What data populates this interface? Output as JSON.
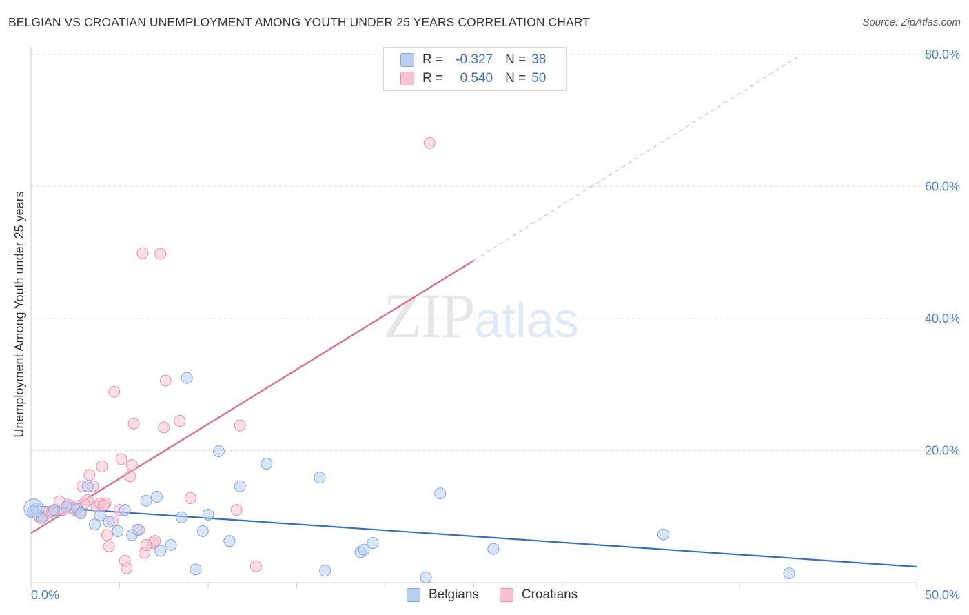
{
  "title": "BELGIAN VS CROATIAN UNEMPLOYMENT AMONG YOUTH UNDER 25 YEARS CORRELATION CHART",
  "source": "Source: ZipAtlas.com",
  "watermark": {
    "zip": "ZIP",
    "atlas": "atlas"
  },
  "legend": {
    "belgians": {
      "r_label": "R =",
      "r_value": "-0.327",
      "n_label": "N =",
      "n_value": "38"
    },
    "croatians": {
      "r_label": "R =",
      "r_value": "0.540",
      "n_label": "N =",
      "n_value": "50"
    }
  },
  "bottom_legend": {
    "belgians": "Belgians",
    "croatians": "Croatians"
  },
  "colors": {
    "belgian_fill": "#b8d0f3",
    "belgian_stroke": "#7fa6df",
    "belgian_line": "#2f6fcb",
    "croatian_fill": "#f7c2d2",
    "croatian_stroke": "#e88fab",
    "croatian_line": "#e0628e",
    "grid": "#dddddd",
    "tick_text": "#4a7fd0"
  },
  "chart_data": {
    "type": "scatter",
    "title": "BELGIAN VS CROATIAN UNEMPLOYMENT AMONG YOUTH UNDER 25 YEARS CORRELATION CHART",
    "xlabel": "",
    "ylabel": "Unemployment Among Youth under 25 years",
    "xlim": [
      0,
      50
    ],
    "ylim": [
      0,
      80
    ],
    "x_tick_labels": [
      "0.0%",
      "50.0%"
    ],
    "y_tick_labels": [
      "20.0%",
      "40.0%",
      "60.0%",
      "80.0%"
    ],
    "y_ticks": [
      20,
      40,
      60,
      80
    ],
    "grid": true,
    "legend_position": "top-center",
    "series": [
      {
        "name": "Belgians",
        "points": [
          [
            0.1,
            10.8
          ],
          [
            0.6,
            9.8
          ],
          [
            1.3,
            11.0
          ],
          [
            2.0,
            11.5
          ],
          [
            2.6,
            11.2
          ],
          [
            2.8,
            10.5
          ],
          [
            3.2,
            14.6
          ],
          [
            3.6,
            8.8
          ],
          [
            3.9,
            10.2
          ],
          [
            4.4,
            9.2
          ],
          [
            4.9,
            7.8
          ],
          [
            5.3,
            11.0
          ],
          [
            5.7,
            7.2
          ],
          [
            6.0,
            8.0
          ],
          [
            6.5,
            12.4
          ],
          [
            7.1,
            13.0
          ],
          [
            7.3,
            4.8
          ],
          [
            7.9,
            5.7
          ],
          [
            8.5,
            9.9
          ],
          [
            8.8,
            31.0
          ],
          [
            9.3,
            2.0
          ],
          [
            9.7,
            7.8
          ],
          [
            10.0,
            10.3
          ],
          [
            10.6,
            19.9
          ],
          [
            11.2,
            6.3
          ],
          [
            11.8,
            14.6
          ],
          [
            13.3,
            18.0
          ],
          [
            16.3,
            15.9
          ],
          [
            16.6,
            1.8
          ],
          [
            18.6,
            4.6
          ],
          [
            18.8,
            5.0
          ],
          [
            19.3,
            6.0
          ],
          [
            22.3,
            0.8
          ],
          [
            23.1,
            13.5
          ],
          [
            26.1,
            5.1
          ],
          [
            35.7,
            7.3
          ],
          [
            42.8,
            1.4
          ],
          [
            0.3,
            11.2
          ]
        ]
      },
      {
        "name": "Croatians",
        "points": [
          [
            0.2,
            10.6
          ],
          [
            0.4,
            10.2
          ],
          [
            0.7,
            10.0
          ],
          [
            1.0,
            10.6
          ],
          [
            1.4,
            11.0
          ],
          [
            1.6,
            12.3
          ],
          [
            1.8,
            11.0
          ],
          [
            2.1,
            11.8
          ],
          [
            2.3,
            11.3
          ],
          [
            2.5,
            11.0
          ],
          [
            2.8,
            10.6
          ],
          [
            2.9,
            14.6
          ],
          [
            3.2,
            12.5
          ],
          [
            3.3,
            16.3
          ],
          [
            3.5,
            14.6
          ],
          [
            3.7,
            11.5
          ],
          [
            3.9,
            12.0
          ],
          [
            4.0,
            17.6
          ],
          [
            4.2,
            12.0
          ],
          [
            4.3,
            7.2
          ],
          [
            4.4,
            5.5
          ],
          [
            4.6,
            9.3
          ],
          [
            4.7,
            28.9
          ],
          [
            5.0,
            11.0
          ],
          [
            5.1,
            18.7
          ],
          [
            5.3,
            3.3
          ],
          [
            5.4,
            2.2
          ],
          [
            5.6,
            16.1
          ],
          [
            5.7,
            17.8
          ],
          [
            5.8,
            24.1
          ],
          [
            6.1,
            8.0
          ],
          [
            6.3,
            49.9
          ],
          [
            6.4,
            4.5
          ],
          [
            6.9,
            6.0
          ],
          [
            7.0,
            6.3
          ],
          [
            7.3,
            49.8
          ],
          [
            7.5,
            23.5
          ],
          [
            7.6,
            30.6
          ],
          [
            8.4,
            24.5
          ],
          [
            9.0,
            12.8
          ],
          [
            11.6,
            11.0
          ],
          [
            11.8,
            23.8
          ],
          [
            12.7,
            2.5
          ],
          [
            22.5,
            66.6
          ],
          [
            0.5,
            9.8
          ],
          [
            1.2,
            10.8
          ],
          [
            2.6,
            11.6
          ],
          [
            3.0,
            12.0
          ],
          [
            4.1,
            11.7
          ],
          [
            6.5,
            5.7
          ]
        ]
      }
    ],
    "trend_lines": [
      {
        "name": "Belgians",
        "x": [
          0,
          50
        ],
        "y": [
          11.6,
          2.4
        ],
        "style": "solid"
      },
      {
        "name": "Croatians",
        "x": [
          0,
          25
        ],
        "y": [
          7.5,
          48.8
        ],
        "style": "solid"
      },
      {
        "name": "Croatians",
        "x": [
          25,
          43.5
        ],
        "y": [
          48.8,
          80
        ],
        "style": "dashed"
      }
    ]
  }
}
